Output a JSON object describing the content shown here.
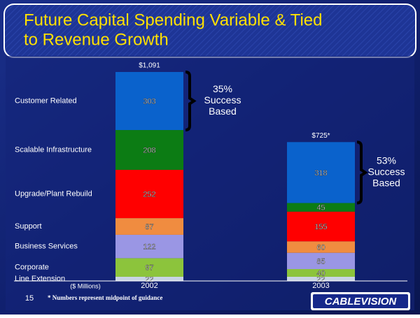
{
  "chart_data": {
    "type": "stacked-bar",
    "title": [
      "Future Capital Spending Variable & Tied",
      "to Revenue Growth"
    ],
    "categories": [
      "2002",
      "2003"
    ],
    "x_label": "($ Millions)",
    "series": [
      {
        "name": "Line Extension",
        "color": "#c8d4e4",
        "values": [
          22,
          22
        ]
      },
      {
        "name": "Corporate",
        "color": "#8cc43c",
        "values": [
          97,
          40
        ]
      },
      {
        "name": "Business Services",
        "color": "#9a96e4",
        "values": [
          122,
          85
        ]
      },
      {
        "name": "Support",
        "color": "#f08c40",
        "values": [
          87,
          60
        ]
      },
      {
        "name": "Upgrade/Plant Rebuild",
        "color": "#ff0000",
        "values": [
          252,
          155
        ]
      },
      {
        "name": "Scalable Infrastructure",
        "color": "#0c7c14",
        "values": [
          208,
          45
        ]
      },
      {
        "name": "Customer Related",
        "color": "#0a62cc",
        "values": [
          303,
          318
        ]
      }
    ],
    "totals": {
      "values": [
        1091,
        725
      ],
      "value_labels": [
        "$1,091",
        "$725*"
      ]
    },
    "annotations": [
      [
        "35%",
        "Success",
        "Based"
      ],
      [
        "53%",
        "Success",
        "Based"
      ]
    ],
    "page_number": "15",
    "footnote": "* Numbers represent midpoint of guidance",
    "logo": "CABLEVISION"
  }
}
